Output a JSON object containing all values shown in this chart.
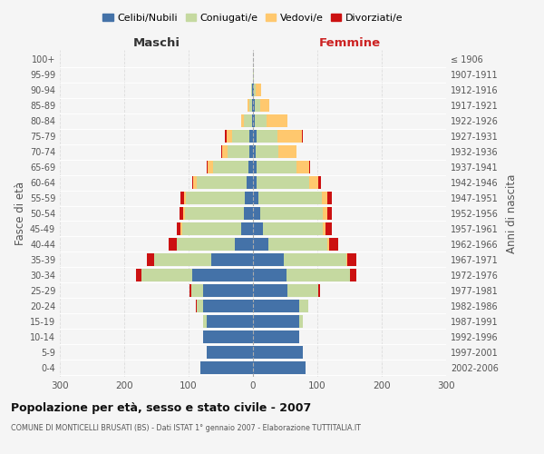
{
  "age_groups": [
    "0-4",
    "5-9",
    "10-14",
    "15-19",
    "20-24",
    "25-29",
    "30-34",
    "35-39",
    "40-44",
    "45-49",
    "50-54",
    "55-59",
    "60-64",
    "65-69",
    "70-74",
    "75-79",
    "80-84",
    "85-89",
    "90-94",
    "95-99",
    "100+"
  ],
  "birth_years": [
    "2002-2006",
    "1997-2001",
    "1992-1996",
    "1987-1991",
    "1982-1986",
    "1977-1981",
    "1972-1976",
    "1967-1971",
    "1962-1966",
    "1957-1961",
    "1952-1956",
    "1947-1951",
    "1942-1946",
    "1937-1941",
    "1932-1936",
    "1927-1931",
    "1922-1926",
    "1917-1921",
    "1912-1916",
    "1907-1911",
    "≤ 1906"
  ],
  "maschi_celibi": [
    82,
    72,
    78,
    72,
    78,
    78,
    95,
    65,
    28,
    18,
    14,
    12,
    10,
    7,
    5,
    5,
    2,
    1,
    1,
    0,
    0
  ],
  "maschi_coniugati": [
    0,
    0,
    0,
    5,
    10,
    18,
    78,
    88,
    90,
    92,
    92,
    92,
    78,
    55,
    35,
    28,
    12,
    5,
    2,
    0,
    0
  ],
  "maschi_vedovi": [
    0,
    0,
    0,
    0,
    0,
    0,
    0,
    0,
    1,
    2,
    3,
    3,
    5,
    8,
    8,
    8,
    5,
    2,
    0,
    0,
    0
  ],
  "maschi_divorziati": [
    0,
    0,
    0,
    0,
    1,
    2,
    8,
    12,
    12,
    7,
    5,
    5,
    2,
    2,
    1,
    2,
    0,
    0,
    0,
    0,
    0
  ],
  "femmine_nubili": [
    82,
    78,
    72,
    72,
    72,
    53,
    52,
    48,
    24,
    16,
    11,
    9,
    6,
    5,
    4,
    5,
    3,
    3,
    1,
    0,
    0
  ],
  "femmine_coniugate": [
    0,
    0,
    0,
    5,
    14,
    48,
    98,
    97,
    92,
    93,
    98,
    98,
    82,
    62,
    35,
    33,
    18,
    8,
    3,
    1,
    0
  ],
  "femmine_vedove": [
    0,
    0,
    0,
    0,
    0,
    1,
    1,
    2,
    2,
    4,
    7,
    9,
    14,
    20,
    28,
    38,
    33,
    15,
    8,
    1,
    0
  ],
  "femmine_divorziate": [
    0,
    0,
    0,
    0,
    0,
    2,
    9,
    14,
    14,
    9,
    7,
    7,
    4,
    2,
    1,
    2,
    0,
    0,
    0,
    0,
    0
  ],
  "colors_celibi": "#4472a8",
  "colors_coniugati": "#c5d9a0",
  "colors_vedovi": "#ffc86e",
  "colors_divorziati": "#cc1111",
  "xlim": 300,
  "title": "Popolazione per età, sesso e stato civile - 2007",
  "subtitle": "COMUNE DI MONTICELLI BRUSATI (BS) - Dati ISTAT 1° gennaio 2007 - Elaborazione TUTTITALIA.IT",
  "ylabel": "Fasce di età",
  "ylabel_right": "Anni di nascita",
  "xlabel_maschi": "Maschi",
  "xlabel_femmine": "Femmine",
  "bg_color": "#f5f5f5",
  "legend_labels": [
    "Celibi/Nubili",
    "Coniugati/e",
    "Vedovi/e",
    "Divorziati/e"
  ]
}
